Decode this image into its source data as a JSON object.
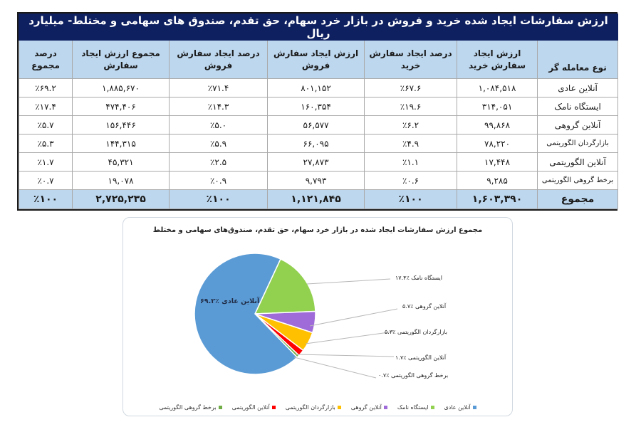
{
  "table": {
    "title": "ارزش سفارشات ایجاد شده خرید و فروش در بازار خرد سهام، حق تقدم، صندوق های سهامی و مختلط- میلیارد ریال",
    "headers": [
      {
        "line1": "",
        "line2": "نوع معامله گر"
      },
      {
        "line1": "ارزش ایجاد",
        "line2": "سفارش خرید"
      },
      {
        "line1": "درصد ایجاد سفارش",
        "line2": "خرید"
      },
      {
        "line1": "ارزش ایجاد سفارش",
        "line2": "فروش"
      },
      {
        "line1": "درصد ایجاد سفارش",
        "line2": "فروش"
      },
      {
        "line1": "مجموع ارزش ایجاد",
        "line2": "سفارش"
      },
      {
        "line1": "درصد",
        "line2": "مجموع"
      }
    ],
    "rows": [
      {
        "type": "آنلاین عادی",
        "buy_value": "۱,۰۸۴,۵۱۸",
        "buy_pct": "٪۶۷.۶",
        "sell_value": "۸۰۱,۱۵۲",
        "sell_pct": "٪۷۱.۴",
        "total_value": "۱,۸۸۵,۶۷۰",
        "total_pct": "٪۶۹.۲"
      },
      {
        "type": "ایستگاه نامک",
        "buy_value": "۳۱۴,۰۵۱",
        "buy_pct": "٪۱۹.۶",
        "sell_value": "۱۶۰,۳۵۴",
        "sell_pct": "٪۱۴.۳",
        "total_value": "۴۷۴,۴۰۶",
        "total_pct": "٪۱۷.۴"
      },
      {
        "type": "آنلاین گروهی",
        "buy_value": "۹۹,۸۶۸",
        "buy_pct": "٪۶.۲",
        "sell_value": "۵۶,۵۷۷",
        "sell_pct": "٪۵.۰",
        "total_value": "۱۵۶,۴۴۶",
        "total_pct": "٪۵.۷"
      },
      {
        "type": "بازارگردان الگوریتمی",
        "buy_value": "۷۸,۲۲۰",
        "buy_pct": "٪۴.۹",
        "sell_value": "۶۶,۰۹۵",
        "sell_pct": "٪۵.۹",
        "total_value": "۱۴۴,۳۱۵",
        "total_pct": "٪۵.۳"
      },
      {
        "type": "آنلاین الگوریتمی",
        "buy_value": "۱۷,۴۴۸",
        "buy_pct": "٪۱.۱",
        "sell_value": "۲۷,۸۷۳",
        "sell_pct": "٪۲.۵",
        "total_value": "۴۵,۳۲۱",
        "total_pct": "٪۱.۷"
      },
      {
        "type": "برخط گروهی الگوریتمی",
        "buy_value": "۹,۲۸۵",
        "buy_pct": "٪۰.۶",
        "sell_value": "۹,۷۹۳",
        "sell_pct": "٪۰.۹",
        "total_value": "۱۹,۰۷۸",
        "total_pct": "٪۰.۷"
      }
    ],
    "total": {
      "type": "مجموع",
      "buy_value": "۱,۶۰۳,۳۹۰",
      "buy_pct": "٪۱۰۰",
      "sell_value": "۱,۱۲۱,۸۴۵",
      "sell_pct": "٪۱۰۰",
      "total_value": "۲,۷۲۵,۲۳۵",
      "total_pct": "٪۱۰۰"
    }
  },
  "chart": {
    "title": "مجموع ارزش سفارشات ایجاد شده در بازار خرد سهام، حق تقدم، صندوق‌های سهامی و مختلط",
    "slice_labels": [
      "آنلاین عادی ٪۶۹.۲",
      "ایستگاه نامک ٪۱۷.۴",
      "آنلاین گروهی ٪۵.۷",
      "بازارگردان الگوریتمی ٪۵.۳",
      "آنلاین الگوریتمی ٪۱.۷",
      "برخط گروهی الگوریتمی ٪۰.۷"
    ],
    "legend": [
      {
        "label": "آنلاین عادی",
        "color": "#5b9bd5"
      },
      {
        "label": "ایستگاه نامک",
        "color": "#92d050"
      },
      {
        "label": "آنلاین گروهی",
        "color": "#9e6bd8"
      },
      {
        "label": "بازارگردان الگوریتمی",
        "color": "#ffc000"
      },
      {
        "label": "آنلاین الگوریتمی",
        "color": "#ff0000"
      },
      {
        "label": "برخط گروهی الگوریتمی",
        "color": "#70ad47"
      }
    ]
  },
  "chart_data": {
    "type": "pie",
    "title": "مجموع ارزش سفارشات ایجاد شده در بازار خرد سهام، حق تقدم، صندوق‌های سهامی و مختلط",
    "categories": [
      "آنلاین عادی",
      "ایستگاه نامک",
      "آنلاین گروهی",
      "بازارگردان الگوریتمی",
      "آنلاین الگوریتمی",
      "برخط گروهی الگوریتمی"
    ],
    "values": [
      69.2,
      17.4,
      5.7,
      5.3,
      1.7,
      0.7
    ],
    "colors": [
      "#5b9bd5",
      "#92d050",
      "#9e6bd8",
      "#ffc000",
      "#ff0000",
      "#70ad47"
    ],
    "legend_position": "bottom",
    "unit": "percent"
  }
}
